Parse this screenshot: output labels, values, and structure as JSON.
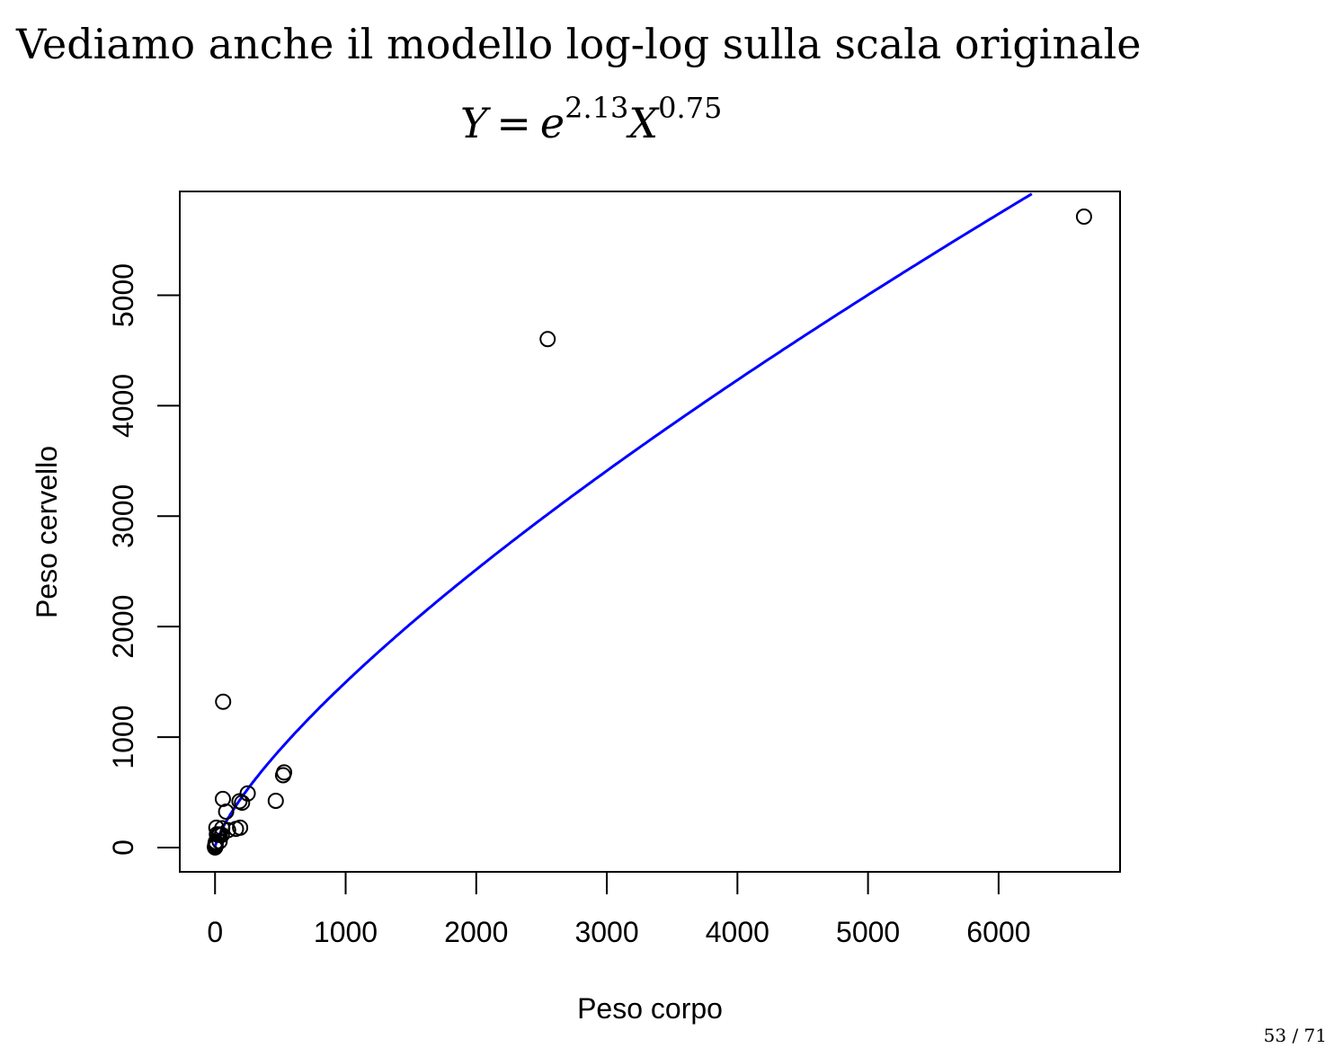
{
  "slide": {
    "title": "Vediamo anche il modello log-log sulla scala originale",
    "formula": {
      "lhs": "Y",
      "eq": "=",
      "e": "e",
      "e_exp": "2.13",
      "x": "X",
      "x_exp": "0.75"
    },
    "page_number": "53 / 71"
  },
  "chart_data": {
    "type": "scatter",
    "title": "",
    "xlabel": "Peso corpo",
    "ylabel": "Peso cervello",
    "xlim": [
      -270,
      6930
    ],
    "ylim": [
      -220,
      5940
    ],
    "x_ticks": [
      0,
      1000,
      2000,
      3000,
      4000,
      5000,
      6000
    ],
    "y_ticks": [
      0,
      1000,
      2000,
      3000,
      4000,
      5000
    ],
    "grid": false,
    "legend": "none",
    "points": [
      [
        6654,
        5712
      ],
      [
        2547,
        4603
      ],
      [
        62,
        1320
      ],
      [
        521,
        655
      ],
      [
        529,
        680
      ],
      [
        465,
        423
      ],
      [
        250,
        490
      ],
      [
        207,
        406
      ],
      [
        187,
        419
      ],
      [
        192,
        180
      ],
      [
        160,
        169
      ],
      [
        100,
        157
      ],
      [
        85,
        325
      ],
      [
        60,
        440
      ],
      [
        52,
        115
      ],
      [
        36,
        119
      ],
      [
        27,
        115
      ],
      [
        10,
        180
      ],
      [
        6,
        50
      ],
      [
        3.5,
        10.8
      ],
      [
        2.5,
        12.1
      ],
      [
        1.3,
        12.2
      ],
      [
        0.9,
        2.6
      ],
      [
        0.2,
        5.0
      ],
      [
        0.1,
        4.0
      ],
      [
        0.01,
        0.25
      ],
      [
        4.2,
        25.6
      ],
      [
        55,
        175
      ],
      [
        35,
        56
      ],
      [
        14,
        120
      ],
      [
        0.75,
        12.3
      ],
      [
        4.2,
        39.2
      ],
      [
        1.6,
        11.4
      ],
      [
        0.5,
        15.5
      ]
    ],
    "fit_curve": {
      "name": "",
      "intercept_log": 2.13,
      "slope_log": 0.75,
      "color": "#0000ff"
    },
    "point_style": "open-circle"
  }
}
